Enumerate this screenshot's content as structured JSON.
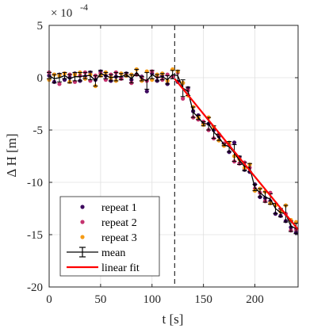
{
  "chart_data": {
    "type": "scatter",
    "xlabel": "t [s]",
    "ylabel": "Δ H [m]",
    "exponent_label": "× 10",
    "exponent_value": "-4",
    "xlim": [
      0,
      242
    ],
    "ylim": [
      -20,
      5
    ],
    "xticks": [
      "0",
      "50",
      "100",
      "150",
      "200"
    ],
    "xtick_values": [
      0,
      50,
      100,
      150,
      200
    ],
    "yticks": [
      "5",
      "0",
      "-5",
      "-10",
      "-15",
      "-20"
    ],
    "ytick_values": [
      5,
      0,
      -5,
      -10,
      -15,
      -20
    ],
    "grid": true,
    "legend_position": "bottom-left",
    "changepoint_x": 122,
    "x": [
      0,
      5,
      10,
      15,
      20,
      25,
      30,
      35,
      40,
      45,
      50,
      55,
      60,
      65,
      70,
      75,
      80,
      85,
      90,
      95,
      100,
      105,
      110,
      115,
      120,
      125,
      130,
      135,
      140,
      145,
      150,
      155,
      160,
      165,
      170,
      175,
      180,
      185,
      190,
      195,
      200,
      205,
      210,
      215,
      220,
      225,
      230,
      235,
      240
    ],
    "series": [
      {
        "name": "repeat 1",
        "color": "#3d0a5e",
        "kind": "points",
        "values": [
          0.2,
          -0.4,
          0.3,
          -0.2,
          0.0,
          0.4,
          -0.3,
          0.1,
          0.5,
          -0.2,
          0.6,
          0.2,
          -0.3,
          0.1,
          0.0,
          0.4,
          -0.2,
          0.3,
          0.1,
          -1.3,
          0.4,
          -0.3,
          0.2,
          -0.6,
          0.1,
          -0.4,
          -0.5,
          -1.0,
          -3.2,
          -3.6,
          -4.4,
          -4.4,
          -5.0,
          -5.6,
          -6.3,
          -7.1,
          -6.2,
          -7.6,
          -8.8,
          -9.0,
          -10.2,
          -11.4,
          -11.5,
          -11.8,
          -13.0,
          -13.2,
          -13.7,
          -14.3,
          -14.8
        ]
      },
      {
        "name": "repeat 2",
        "color": "#c4326e",
        "kind": "points",
        "values": [
          0.5,
          0.3,
          -0.6,
          0.4,
          0.3,
          -0.4,
          0.2,
          0.5,
          -0.3,
          0.2,
          0.4,
          -0.2,
          0.3,
          0.5,
          -0.1,
          0.2,
          -0.5,
          0.3,
          0.0,
          -0.3,
          0.6,
          0.1,
          -0.2,
          0.3,
          0.1,
          0.5,
          -2.0,
          -1.2,
          -3.8,
          -4.0,
          -4.2,
          -5.0,
          -5.8,
          -5.4,
          -6.3,
          -6.4,
          -8.0,
          -8.2,
          -8.1,
          -8.6,
          -10.6,
          -11.0,
          -11.8,
          -11.0,
          -12.2,
          -12.6,
          -13.0,
          -14.6,
          -14.5
        ]
      },
      {
        "name": "repeat 3",
        "color": "#f59b16",
        "kind": "points",
        "values": [
          -0.2,
          0.3,
          0.2,
          0.4,
          -0.4,
          0.3,
          0.5,
          -0.1,
          0.3,
          -0.8,
          0.2,
          0.5,
          0.0,
          -0.3,
          0.4,
          0.2,
          0.3,
          0.8,
          -0.3,
          0.6,
          -0.2,
          0.3,
          0.4,
          -0.3,
          0.8,
          0.6,
          -0.5,
          -1.7,
          -2.8,
          -3.8,
          -4.5,
          -3.8,
          -4.7,
          -6.0,
          -6.5,
          -6.2,
          -7.5,
          -7.8,
          -8.6,
          -8.3,
          -10.8,
          -10.6,
          -10.9,
          -12.0,
          -12.2,
          -12.8,
          -12.2,
          -13.6,
          -13.8
        ]
      },
      {
        "name": "mean",
        "color": "#000000",
        "kind": "errorbar",
        "values": [
          0.2,
          -0.1,
          0.0,
          0.2,
          -0.1,
          0.1,
          0.1,
          0.2,
          0.2,
          -0.3,
          0.4,
          0.2,
          0.0,
          0.1,
          0.1,
          0.3,
          -0.1,
          0.5,
          -0.1,
          -0.3,
          0.3,
          0.0,
          0.1,
          -0.2,
          0.3,
          0.2,
          -1.0,
          -1.3,
          -3.3,
          -3.8,
          -4.4,
          -4.4,
          -5.2,
          -5.7,
          -6.4,
          -6.6,
          -7.2,
          -7.9,
          -8.5,
          -8.6,
          -10.5,
          -11.0,
          -11.4,
          -11.6,
          -12.5,
          -12.9,
          -13.0,
          -14.2,
          -14.4
        ],
        "errors": [
          0.3,
          0.4,
          0.4,
          0.3,
          0.4,
          0.4,
          0.4,
          0.3,
          0.4,
          0.5,
          0.3,
          0.3,
          0.3,
          0.4,
          0.3,
          0.2,
          0.4,
          0.3,
          0.2,
          0.8,
          0.4,
          0.3,
          0.3,
          0.4,
          0.4,
          0.5,
          0.8,
          0.4,
          0.5,
          0.2,
          0.2,
          0.6,
          0.6,
          0.3,
          0.1,
          0.5,
          0.8,
          0.4,
          0.4,
          0.4,
          0.3,
          0.4,
          0.5,
          0.5,
          0.5,
          0.4,
          0.8,
          0.5,
          0.5
        ]
      },
      {
        "name": "linear fit",
        "color": "#ff0000",
        "kind": "line",
        "points": [
          [
            122,
            -0.1
          ],
          [
            242,
            -14.5
          ]
        ]
      }
    ]
  }
}
